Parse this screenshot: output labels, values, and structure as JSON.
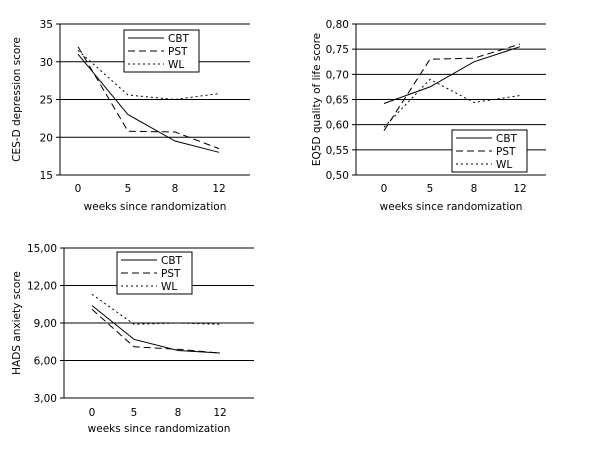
{
  "chart_data": [
    {
      "type": "line",
      "x": [
        0,
        5,
        8,
        12
      ],
      "xlabel": "weeks since randomization",
      "ylabel": "CES-D depression score",
      "ylim": [
        15,
        35
      ],
      "yticks": [
        "15",
        "20",
        "25",
        "30",
        "35"
      ],
      "grid": "horizontal",
      "legend": "top-center",
      "series": [
        {
          "name": "CBT",
          "style": "solid",
          "values": [
            31.0,
            23.0,
            19.5,
            18.0
          ]
        },
        {
          "name": "PST",
          "style": "dashed",
          "values": [
            32.0,
            20.8,
            20.7,
            18.5
          ]
        },
        {
          "name": "WL",
          "style": "dotted",
          "values": [
            31.5,
            25.6,
            25.0,
            25.8
          ]
        }
      ]
    },
    {
      "type": "line",
      "x": [
        0,
        5,
        8,
        12
      ],
      "xlabel": "weeks since randomization",
      "ylabel": "EQ5D quality of life score",
      "ylim": [
        0.5,
        0.8
      ],
      "yticks": [
        "0,50",
        "0,55",
        "0,60",
        "0,65",
        "0,70",
        "0,75",
        "0,80"
      ],
      "grid": "horizontal",
      "legend": "bottom-right",
      "series": [
        {
          "name": "CBT",
          "style": "solid",
          "values": [
            0.642,
            0.675,
            0.725,
            0.755
          ]
        },
        {
          "name": "PST",
          "style": "dashed",
          "values": [
            0.588,
            0.73,
            0.732,
            0.76
          ]
        },
        {
          "name": "WL",
          "style": "dotted",
          "values": [
            0.595,
            0.69,
            0.644,
            0.658
          ]
        }
      ]
    },
    {
      "type": "line",
      "x": [
        0,
        5,
        8,
        12
      ],
      "xlabel": "weeks since randomization",
      "ylabel": "HADS anxiety score",
      "ylim": [
        3,
        15
      ],
      "yticks": [
        "3,00",
        "6,00",
        "9,00",
        "12,00",
        "15,00"
      ],
      "grid": "horizontal",
      "legend": "top-right",
      "series": [
        {
          "name": "CBT",
          "style": "solid",
          "values": [
            10.4,
            7.7,
            6.8,
            6.6
          ]
        },
        {
          "name": "PST",
          "style": "dashed",
          "values": [
            10.1,
            7.1,
            6.9,
            6.6
          ]
        },
        {
          "name": "WL",
          "style": "dotted",
          "values": [
            11.3,
            8.9,
            9.0,
            8.9
          ]
        }
      ]
    }
  ]
}
